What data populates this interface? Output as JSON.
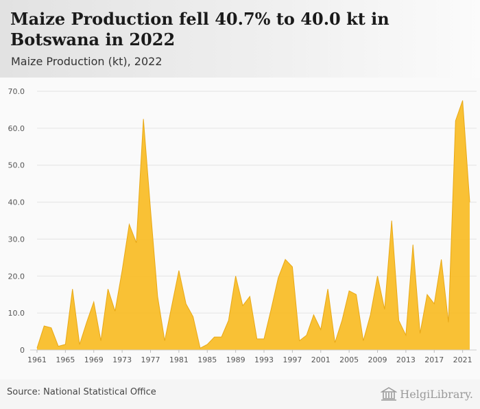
{
  "header": {
    "title": "Maize Production fell 40.7% to 40.0 kt in Botswana in 2022",
    "subtitle": "Maize Production (kt), 2022"
  },
  "footer": {
    "source": "Source: National Statistical Office",
    "logo": "HelgiLibrary."
  },
  "colors": {
    "area_fill": "#f9be2a",
    "area_stroke": "#e8a816",
    "grid": "#e3e3e3",
    "tick_text": "#555555"
  },
  "chart_data": {
    "type": "area",
    "title": "Maize Production fell 40.7% to 40.0 kt in Botswana in 2022",
    "subtitle": "Maize Production (kt), 2022",
    "xlabel": "",
    "ylabel": "",
    "ylim": [
      0,
      70
    ],
    "grid": true,
    "y_ticks": [
      "0",
      "10.0",
      "20.0",
      "30.0",
      "40.0",
      "50.0",
      "60.0",
      "70.0"
    ],
    "x_ticks": [
      "1961",
      "1965",
      "1969",
      "1973",
      "1977",
      "1981",
      "1985",
      "1989",
      "1993",
      "1997",
      "2001",
      "2005",
      "2009",
      "2013",
      "2017",
      "2021"
    ],
    "series": [
      {
        "x": [
          1961,
          1962,
          1963,
          1964,
          1965,
          1966,
          1967,
          1968,
          1969,
          1970,
          1971,
          1972,
          1973,
          1974,
          1975,
          1976,
          1977,
          1978,
          1979,
          1980,
          1981,
          1982,
          1983,
          1984,
          1985,
          1986,
          1987,
          1988,
          1989,
          1990,
          1991,
          1992,
          1993,
          1994,
          1995,
          1996,
          1997,
          1998,
          1999,
          2000,
          2001,
          2002,
          2003,
          2004,
          2005,
          2006,
          2007,
          2008,
          2009,
          2010,
          2011,
          2012,
          2013,
          2014,
          2015,
          2016,
          2017,
          2018,
          2019,
          2020,
          2021,
          2022
        ],
        "values": [
          0.5,
          6.5,
          6.0,
          1.0,
          1.5,
          16.5,
          1.5,
          7.5,
          13.0,
          2.5,
          16.5,
          10.5,
          21.5,
          34.0,
          29.0,
          62.5,
          38.0,
          14.5,
          2.5,
          12.0,
          21.5,
          12.5,
          9.0,
          0.5,
          1.5,
          3.5,
          3.5,
          8.0,
          20.0,
          12.0,
          14.5,
          3.0,
          3.0,
          11.0,
          19.5,
          24.5,
          22.5,
          2.5,
          4.0,
          9.5,
          5.5,
          16.5,
          2.0,
          8.0,
          16.0,
          15.0,
          2.5,
          9.5,
          20.0,
          11.0,
          35.0,
          8.0,
          4.0,
          28.5,
          4.5,
          15.0,
          12.5,
          24.5,
          7.5,
          62.0,
          67.5,
          40.0
        ]
      }
    ]
  }
}
